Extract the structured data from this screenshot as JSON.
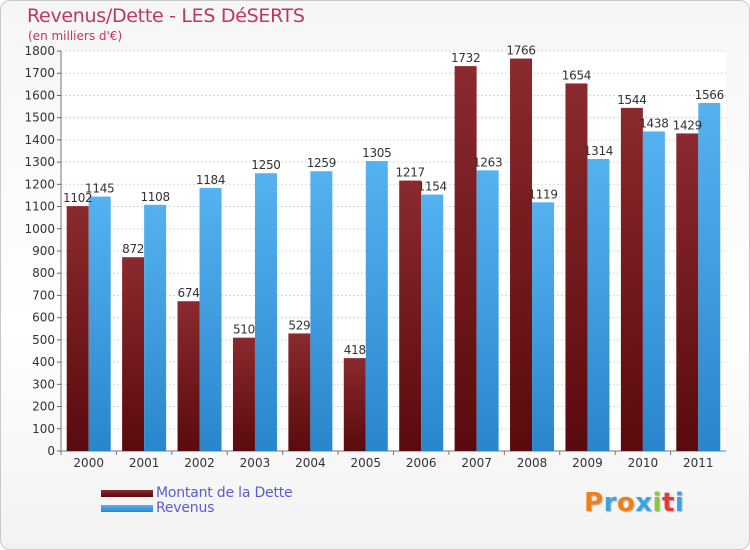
{
  "header": {
    "title": "Revenus/Dette - LES DéSERTS",
    "subtitle": "(en milliers d'€)"
  },
  "colors": {
    "debt": "#7a1c20",
    "revenue": "#3f9fe3",
    "title": "#c2365a",
    "legend_text": "#5b5bd6"
  },
  "legend": {
    "debt_label": "Montant de la Dette",
    "revenue_label": "Revenus"
  },
  "logo": {
    "text": "Proxiti",
    "letters": [
      "P",
      "r",
      "o",
      "x",
      "i",
      "t",
      "i"
    ],
    "colors": [
      "#f07f1a",
      "#3aa3e0",
      "#f07f1a",
      "#3aa3e0",
      "#8cc63e",
      "#e23a3a",
      "#3aa3e0"
    ]
  },
  "chart_data": {
    "type": "bar",
    "title": "Revenus/Dette - LES DéSERTS",
    "subtitle": "(en milliers d'€)",
    "categories": [
      "2000",
      "2001",
      "2002",
      "2003",
      "2004",
      "2005",
      "2006",
      "2007",
      "2008",
      "2009",
      "2010",
      "2011"
    ],
    "series": [
      {
        "name": "Montant de la Dette",
        "values": [
          1102,
          872,
          674,
          510,
          529,
          418,
          1217,
          1732,
          1766,
          1654,
          1544,
          1429
        ]
      },
      {
        "name": "Revenus",
        "values": [
          1145,
          1108,
          1184,
          1250,
          1259,
          1305,
          1154,
          1263,
          1119,
          1314,
          1438,
          1566
        ]
      }
    ],
    "ylim": [
      0,
      1800
    ],
    "yticks": [
      0,
      100,
      200,
      300,
      400,
      500,
      600,
      700,
      800,
      900,
      1000,
      1100,
      1200,
      1300,
      1400,
      1500,
      1600,
      1700,
      1800
    ],
    "grid": true,
    "legend_position": "bottom-left"
  }
}
